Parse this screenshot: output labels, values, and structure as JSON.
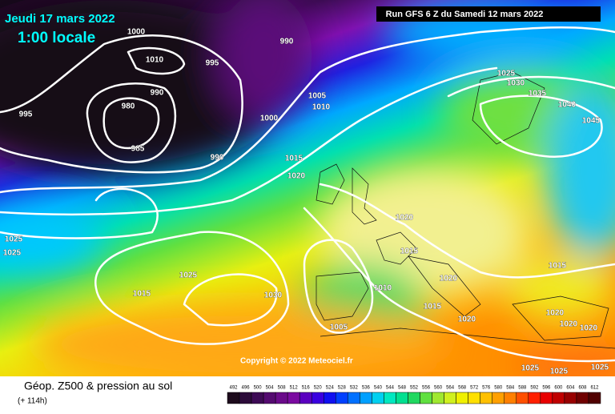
{
  "header": {
    "date": "Jeudi 17 mars 2022",
    "time": "1:00 locale",
    "run": "Run GFS 6 Z du Samedi 12 mars 2022"
  },
  "isobar_labels": [
    1000,
    990,
    1010,
    995,
    990,
    995,
    980,
    1000,
    1005,
    1010,
    985,
    990,
    1015,
    1020,
    1025,
    1030,
    1035,
    1040,
    1045,
    1020,
    1025,
    1025,
    1015,
    1025,
    1020,
    1015,
    1010,
    1015,
    1030,
    1015,
    1020,
    1020,
    1020,
    1020,
    1005,
    1025,
    1025,
    1025
  ],
  "copyright": "Copyright © 2022 Meteociel.fr",
  "footer": {
    "title": "Géop. Z500 & pression au sol",
    "lead": "(+ 114h)"
  },
  "legend": {
    "labels": [
      492,
      496,
      500,
      504,
      508,
      512,
      516,
      520,
      524,
      528,
      532,
      536,
      540,
      544,
      548,
      552,
      556,
      560,
      564,
      568,
      572,
      576,
      580,
      584,
      588,
      592,
      596,
      600,
      604,
      608,
      612
    ],
    "colors": [
      "#1d0b1c",
      "#2c0b3a",
      "#3d0a55",
      "#540a70",
      "#6a0a8a",
      "#7a0aa0",
      "#5a00c0",
      "#3a00e0",
      "#1010f0",
      "#0040ff",
      "#0070ff",
      "#00a0ff",
      "#00d0f0",
      "#00e8c0",
      "#00e090",
      "#20d860",
      "#60e040",
      "#a0e830",
      "#d0f020",
      "#f0f000",
      "#ffe000",
      "#ffc000",
      "#ffa000",
      "#ff8000",
      "#ff5000",
      "#ff2000",
      "#e80000",
      "#c00000",
      "#980000",
      "#700000",
      "#500000"
    ]
  }
}
